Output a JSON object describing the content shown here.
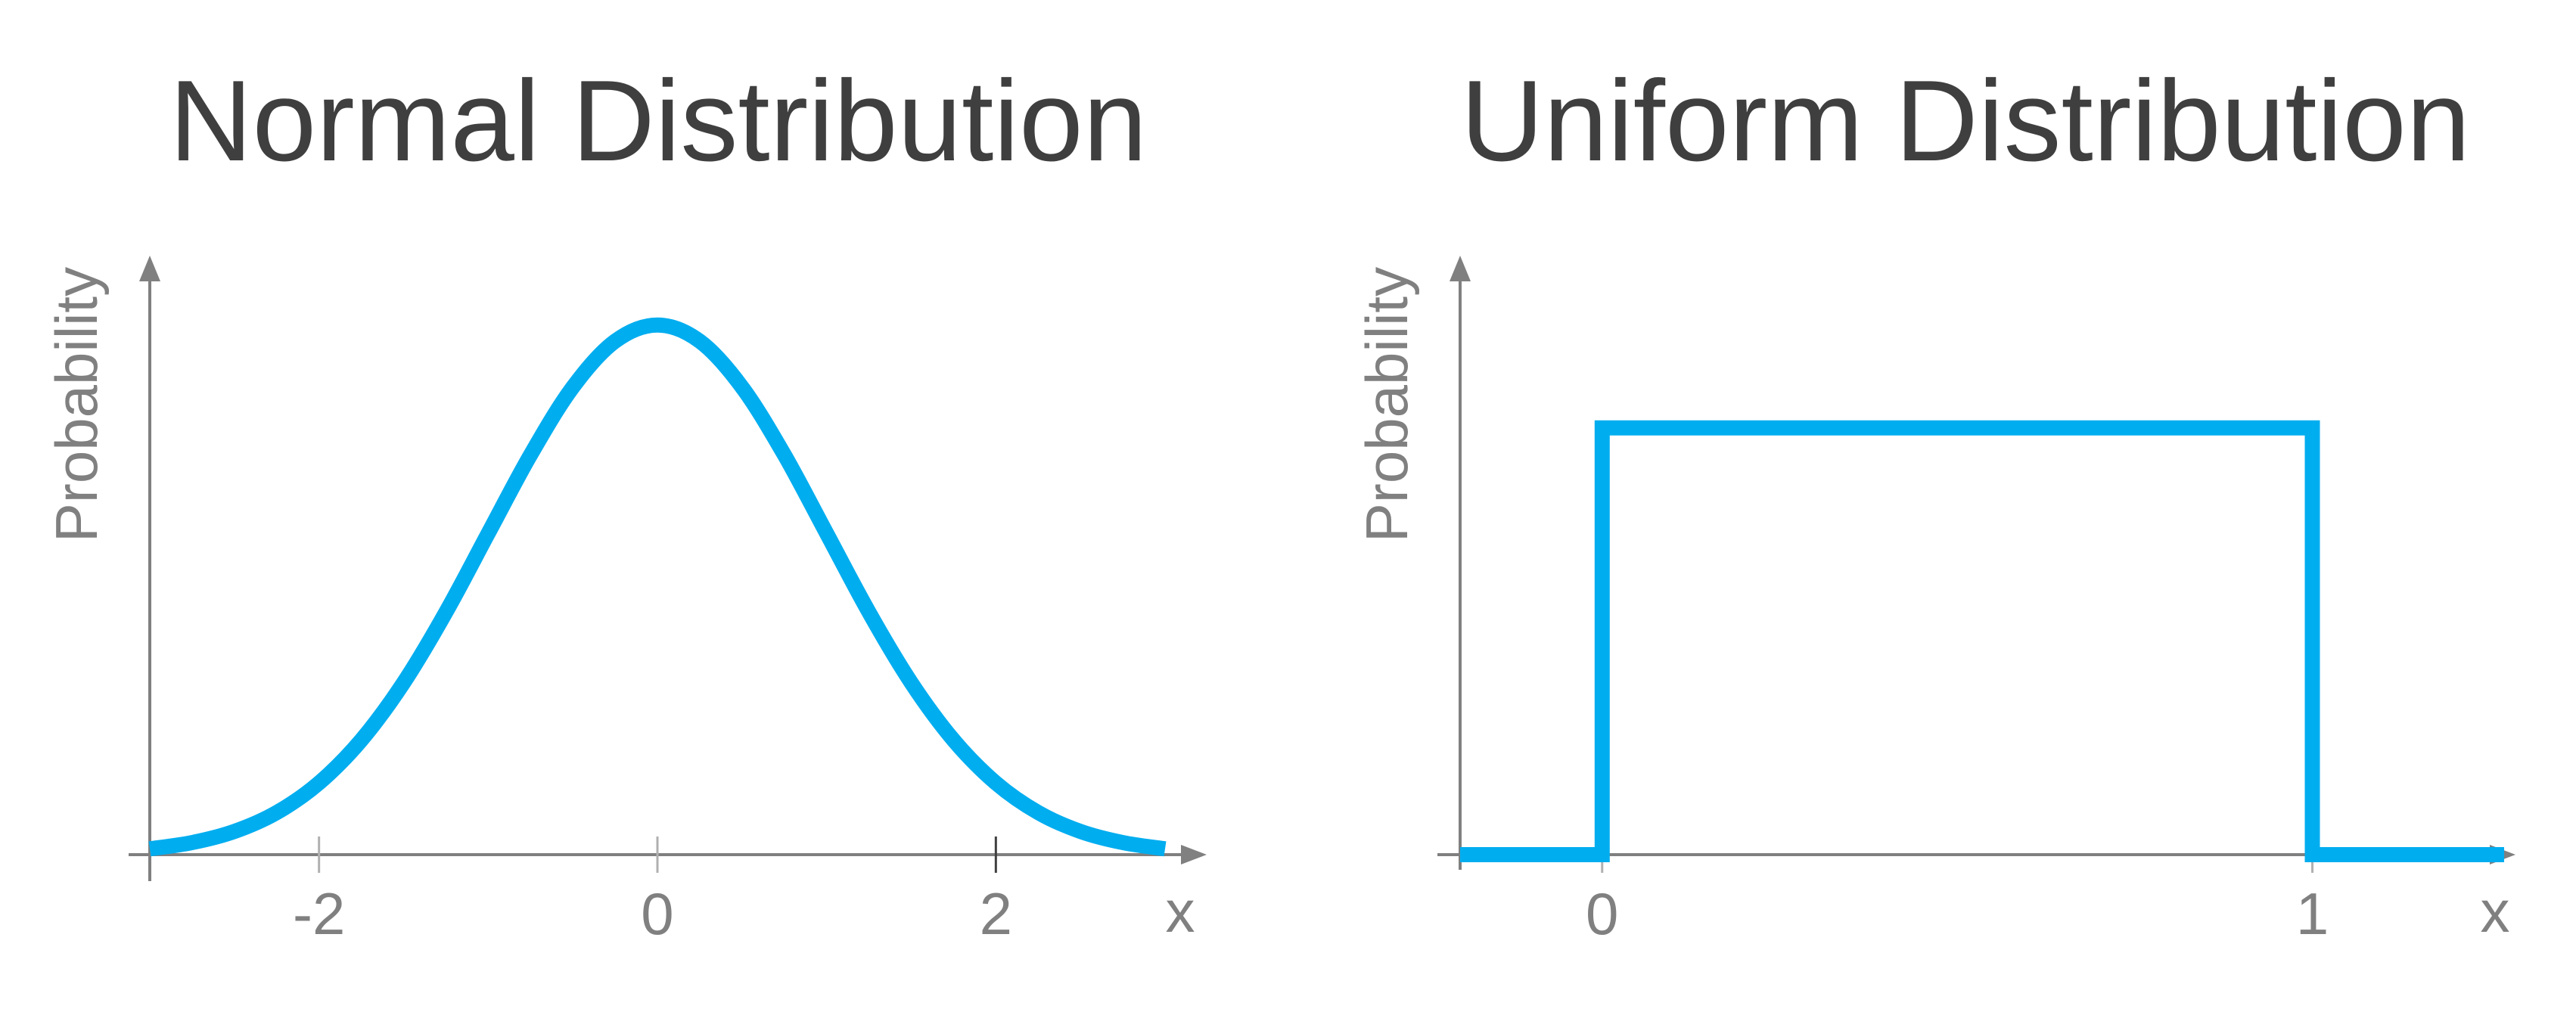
{
  "colors": {
    "curve": "#00adef",
    "axis": "#808080",
    "title": "#3f3f3f",
    "major_tick": "#404040",
    "minor_tick": "#b0b0b0"
  },
  "chart_data": [
    {
      "type": "line",
      "title": "Normal Distribution",
      "xlabel": "x",
      "ylabel": "Probability",
      "xlim": [
        -3,
        3
      ],
      "ylim": [
        0,
        0.45
      ],
      "x_ticks": [
        {
          "value": -2,
          "label": "-2"
        },
        {
          "value": 0,
          "label": "0"
        },
        {
          "value": 2,
          "label": "2"
        }
      ],
      "grid": false,
      "series": [
        {
          "x": [
            -3,
            -2.75,
            -2.5,
            -2.25,
            -2,
            -1.75,
            -1.5,
            -1.25,
            -1,
            -0.75,
            -0.5,
            -0.25,
            0,
            0.25,
            0.5,
            0.75,
            1,
            1.25,
            1.5,
            1.75,
            2,
            2.25,
            2.5,
            2.75,
            3
          ],
          "values": [
            0.0044,
            0.0091,
            0.0175,
            0.0317,
            0.054,
            0.0863,
            0.1295,
            0.1826,
            0.242,
            0.3011,
            0.3521,
            0.3867,
            0.3989,
            0.3867,
            0.3521,
            0.3011,
            0.242,
            0.1826,
            0.1295,
            0.0863,
            0.054,
            0.0317,
            0.0175,
            0.0091,
            0.0044
          ]
        }
      ]
    },
    {
      "type": "line",
      "title": "Uniform Distribution",
      "xlabel": "x",
      "ylabel": "Probability",
      "xlim": [
        -0.2,
        1.27
      ],
      "ylim": [
        0,
        1.4
      ],
      "x_ticks": [
        {
          "value": 0,
          "label": "0"
        },
        {
          "value": 1,
          "label": "1"
        }
      ],
      "grid": false,
      "series": [
        {
          "x": [
            -0.2,
            0,
            0,
            1,
            1,
            1.27
          ],
          "values": [
            0,
            0,
            1,
            1,
            0,
            0
          ]
        }
      ]
    }
  ]
}
